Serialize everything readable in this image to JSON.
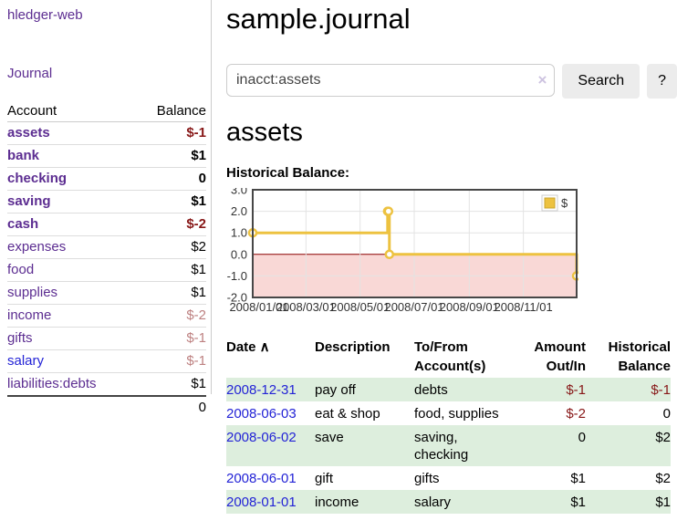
{
  "colors": {
    "link-purple": "#5c2d91",
    "link-blue": "#2323d6",
    "neg": "#871717",
    "neg-muted": "#bd8080",
    "row-green": "#ddeedd"
  },
  "sidebar": {
    "brand": "hledger-web",
    "journal_label": "Journal",
    "accounts_table": {
      "headers": [
        "Account",
        "Balance"
      ],
      "rows": [
        {
          "name": "assets",
          "indent": 1,
          "bold": true,
          "balance": "$-1",
          "balance_style": "neg"
        },
        {
          "name": "bank",
          "indent": 2,
          "bold": true,
          "balance": "$1",
          "balance_style": ""
        },
        {
          "name": "checking",
          "indent": 3,
          "bold": true,
          "balance": "0",
          "balance_style": ""
        },
        {
          "name": "saving",
          "indent": 3,
          "bold": true,
          "balance": "$1",
          "balance_style": ""
        },
        {
          "name": "cash",
          "indent": 2,
          "bold": true,
          "balance": "$-2",
          "balance_style": "neg"
        },
        {
          "name": "expenses",
          "indent": 1,
          "bold": false,
          "balance": "$2",
          "balance_style": ""
        },
        {
          "name": "food",
          "indent": 2,
          "bold": false,
          "balance": "$1",
          "balance_style": ""
        },
        {
          "name": "supplies",
          "indent": 2,
          "bold": false,
          "balance": "$1",
          "balance_style": ""
        },
        {
          "name": "income",
          "indent": 1,
          "bold": false,
          "balance": "$-2",
          "balance_style": "neg-muted"
        },
        {
          "name": "gifts",
          "indent": 2,
          "bold": false,
          "balance": "$-1",
          "balance_style": "neg-muted"
        },
        {
          "name": "salary",
          "indent": 2,
          "bold": false,
          "balance": "$-1",
          "balance_style": "neg-muted",
          "link": "blue"
        },
        {
          "name": "liabilities:debts",
          "indent": 1,
          "bold": false,
          "balance": "$1",
          "balance_style": ""
        }
      ],
      "total": "0"
    }
  },
  "header": {
    "title": "sample.journal"
  },
  "search": {
    "value": "inacct:assets",
    "clear_icon": "×",
    "button_label": "Search",
    "help_label": "?"
  },
  "account_page": {
    "heading": "assets",
    "chart_label": "Historical Balance:"
  },
  "chart_data": {
    "type": "line",
    "title": "Historical Balance:",
    "step": true,
    "series": [
      {
        "name": "$",
        "points": [
          [
            "2008-01-01",
            1.0
          ],
          [
            "2008-06-01",
            2.0
          ],
          [
            "2008-06-02",
            2.0
          ],
          [
            "2008-06-03",
            0.0
          ],
          [
            "2008-12-31",
            -1.0
          ]
        ]
      }
    ],
    "x_range": [
      "2008-01-01",
      "2008-12-31"
    ],
    "x_ticks": [
      "2008/01/01",
      "2008/03/01",
      "2008/05/01",
      "2008/07/01",
      "2008/09/01",
      "2008/11/01"
    ],
    "y_ticks": [
      3.0,
      2.0,
      1.0,
      0.0,
      -1.0,
      -2.0
    ],
    "ylim": [
      -2.0,
      3.0
    ],
    "grid": true,
    "legend": {
      "position": "top-right",
      "entries": [
        {
          "label": "$",
          "color": "#edc240"
        }
      ]
    },
    "line_color": "#edc240",
    "marker_fill": "#ffffff",
    "negative_region_color": "#f9d8d6",
    "zero_line_color": "#8b0000",
    "border_color": "#474747",
    "gridline_color": "#e3e3e3"
  },
  "register_table": {
    "headers": [
      {
        "line1": "Date",
        "line2": "",
        "sort_icon": "∧",
        "align": "left"
      },
      {
        "line1": "Description",
        "line2": "",
        "align": "left"
      },
      {
        "line1": "To/From",
        "line2": "Account(s)",
        "align": "left"
      },
      {
        "line1": "Amount",
        "line2": "Out/In",
        "align": "right"
      },
      {
        "line1": "Historical",
        "line2": "Balance",
        "align": "right"
      }
    ],
    "rows": [
      {
        "date": "2008-12-31",
        "description": "pay off",
        "accounts": "debts",
        "amount": "$-1",
        "amount_neg": true,
        "balance": "$-1",
        "balance_neg": true,
        "shaded": true
      },
      {
        "date": "2008-06-03",
        "description": "eat & shop",
        "accounts": "food, supplies",
        "amount": "$-2",
        "amount_neg": true,
        "balance": "0",
        "balance_neg": false,
        "shaded": false
      },
      {
        "date": "2008-06-02",
        "description": "save",
        "accounts": "saving, checking",
        "amount": "0",
        "amount_neg": false,
        "balance": "$2",
        "balance_neg": false,
        "shaded": true
      },
      {
        "date": "2008-06-01",
        "description": "gift",
        "accounts": "gifts",
        "amount": "$1",
        "amount_neg": false,
        "balance": "$2",
        "balance_neg": false,
        "shaded": false
      },
      {
        "date": "2008-01-01",
        "description": "income",
        "accounts": "salary",
        "amount": "$1",
        "amount_neg": false,
        "balance": "$1",
        "balance_neg": false,
        "shaded": true
      }
    ]
  }
}
